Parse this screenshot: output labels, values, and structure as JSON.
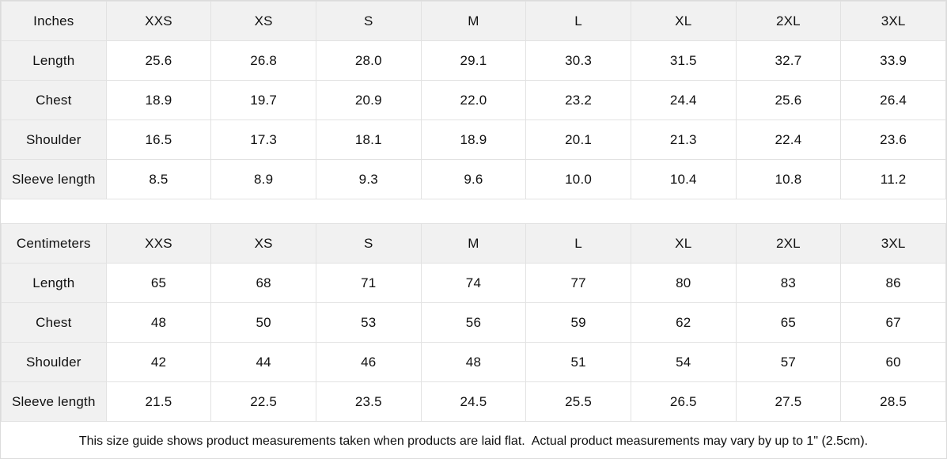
{
  "tables": [
    {
      "unit_label": "Inches",
      "sizes": [
        "XXS",
        "XS",
        "S",
        "M",
        "L",
        "XL",
        "2XL",
        "3XL"
      ],
      "rows": [
        {
          "label": "Length",
          "values": [
            "25.6",
            "26.8",
            "28.0",
            "29.1",
            "30.3",
            "31.5",
            "32.7",
            "33.9"
          ]
        },
        {
          "label": "Chest",
          "values": [
            "18.9",
            "19.7",
            "20.9",
            "22.0",
            "23.2",
            "24.4",
            "25.6",
            "26.4"
          ]
        },
        {
          "label": "Shoulder",
          "values": [
            "16.5",
            "17.3",
            "18.1",
            "18.9",
            "20.1",
            "21.3",
            "22.4",
            "23.6"
          ]
        },
        {
          "label": "Sleeve length",
          "values": [
            "8.5",
            "8.9",
            "9.3",
            "9.6",
            "10.0",
            "10.4",
            "10.8",
            "11.2"
          ]
        }
      ]
    },
    {
      "unit_label": "Centimeters",
      "sizes": [
        "XXS",
        "XS",
        "S",
        "M",
        "L",
        "XL",
        "2XL",
        "3XL"
      ],
      "rows": [
        {
          "label": "Length",
          "values": [
            "65",
            "68",
            "71",
            "74",
            "77",
            "80",
            "83",
            "86"
          ]
        },
        {
          "label": "Chest",
          "values": [
            "48",
            "50",
            "53",
            "56",
            "59",
            "62",
            "65",
            "67"
          ]
        },
        {
          "label": "Shoulder",
          "values": [
            "42",
            "44",
            "46",
            "48",
            "51",
            "54",
            "57",
            "60"
          ]
        },
        {
          "label": "Sleeve length",
          "values": [
            "21.5",
            "22.5",
            "23.5",
            "24.5",
            "25.5",
            "26.5",
            "27.5",
            "28.5"
          ]
        }
      ]
    }
  ],
  "note": "This size guide shows product measurements taken when products are laid flat.  Actual product measurements may vary by up to 1\" (2.5cm).",
  "colors": {
    "header_bg": "#f1f1f1",
    "border": "#e2e2e2",
    "text": "#111111",
    "background": "#ffffff"
  }
}
